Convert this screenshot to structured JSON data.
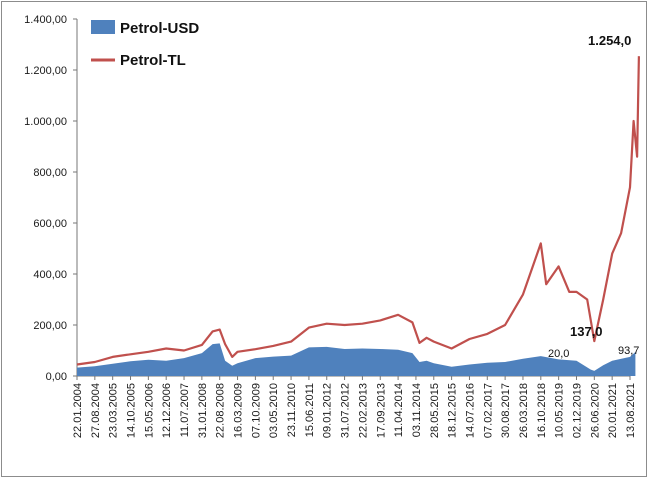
{
  "chart_data": {
    "type": "line",
    "y_ticks": [
      "0,00",
      "200,00",
      "400,00",
      "600,00",
      "800,00",
      "1.000,00",
      "1.200,00",
      "1.400,00"
    ],
    "ylim": [
      0,
      1400
    ],
    "x_ticks": [
      "22.01.2004",
      "27.08.2004",
      "23.03.2005",
      "14.10.2005",
      "15.05.2006",
      "12.12.2006",
      "11.07.2007",
      "31.01.2008",
      "22.08.2008",
      "16.03.2009",
      "07.10.2009",
      "03.05.2010",
      "23.11.2010",
      "15.06.2011",
      "09.01.2012",
      "31.07.2012",
      "22.02.2013",
      "17.09.2013",
      "11.04.2014",
      "03.11.2014",
      "28.05.2015",
      "18.12.2015",
      "14.07.2016",
      "07.02.2017",
      "30.08.2017",
      "26.03.2018",
      "16.10.2018",
      "10.05.2019",
      "02.12.2019",
      "26.06.2020",
      "20.01.2021",
      "13.08.2021"
    ],
    "grid": false,
    "legend_position": "top-left",
    "series": [
      {
        "name": "Petrol-USD",
        "style": "area",
        "color": "#4f81bd",
        "points": [
          [
            0,
            33
          ],
          [
            1,
            38
          ],
          [
            2,
            48
          ],
          [
            3,
            58
          ],
          [
            4,
            64
          ],
          [
            5,
            60
          ],
          [
            6,
            70
          ],
          [
            7,
            90
          ],
          [
            7.6,
            125
          ],
          [
            8.0,
            128
          ],
          [
            8.3,
            60
          ],
          [
            8.7,
            40
          ],
          [
            9,
            50
          ],
          [
            10,
            70
          ],
          [
            11,
            76
          ],
          [
            12,
            80
          ],
          [
            13,
            112
          ],
          [
            14,
            114
          ],
          [
            15,
            106
          ],
          [
            16,
            108
          ],
          [
            17,
            106
          ],
          [
            18,
            103
          ],
          [
            18.8,
            90
          ],
          [
            19.2,
            55
          ],
          [
            19.6,
            60
          ],
          [
            20,
            50
          ],
          [
            21,
            36
          ],
          [
            22,
            45
          ],
          [
            23,
            52
          ],
          [
            24,
            55
          ],
          [
            25,
            68
          ],
          [
            26,
            78
          ],
          [
            27,
            65
          ],
          [
            28,
            60
          ],
          [
            28.8,
            25
          ],
          [
            29,
            20
          ],
          [
            29.5,
            42
          ],
          [
            30,
            60
          ],
          [
            31,
            75
          ],
          [
            31.3,
            94
          ]
        ]
      },
      {
        "name": "Petrol-TL",
        "style": "line",
        "color": "#c0504d",
        "points": [
          [
            0,
            45
          ],
          [
            1,
            55
          ],
          [
            2,
            75
          ],
          [
            3,
            85
          ],
          [
            4,
            95
          ],
          [
            5,
            108
          ],
          [
            6,
            100
          ],
          [
            7,
            122
          ],
          [
            7.6,
            175
          ],
          [
            8.0,
            182
          ],
          [
            8.3,
            125
          ],
          [
            8.7,
            75
          ],
          [
            9,
            95
          ],
          [
            10,
            105
          ],
          [
            11,
            118
          ],
          [
            12,
            135
          ],
          [
            13,
            190
          ],
          [
            14,
            205
          ],
          [
            15,
            200
          ],
          [
            16,
            205
          ],
          [
            17,
            218
          ],
          [
            18,
            240
          ],
          [
            18.8,
            210
          ],
          [
            19.2,
            130
          ],
          [
            19.6,
            150
          ],
          [
            20,
            135
          ],
          [
            21,
            108
          ],
          [
            22,
            145
          ],
          [
            23,
            165
          ],
          [
            24,
            200
          ],
          [
            25,
            320
          ],
          [
            26,
            520
          ],
          [
            26.3,
            360
          ],
          [
            27,
            430
          ],
          [
            27.6,
            330
          ],
          [
            28,
            330
          ],
          [
            28.6,
            300
          ],
          [
            29,
            137
          ],
          [
            29.5,
            300
          ],
          [
            30,
            480
          ],
          [
            30.5,
            560
          ],
          [
            31,
            740
          ],
          [
            31.2,
            1000
          ],
          [
            31.4,
            860
          ],
          [
            31.5,
            1254
          ]
        ]
      }
    ],
    "annotations": [
      "1.254,0",
      "137,0",
      "20,0",
      "93,7"
    ]
  }
}
